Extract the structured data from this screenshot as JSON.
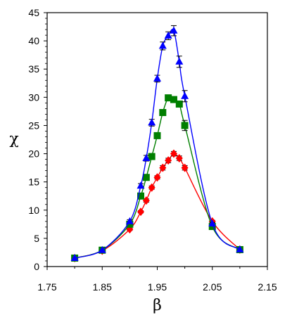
{
  "chart_data": {
    "type": "line",
    "title": "",
    "xlabel": "β",
    "ylabel": "χ",
    "xlim": [
      1.75,
      2.15
    ],
    "ylim": [
      0,
      45
    ],
    "x_ticks": [
      "1.75",
      "1.85",
      "1.95",
      "2.05",
      "2.15"
    ],
    "y_ticks": [
      "0",
      "5",
      "10",
      "15",
      "20",
      "25",
      "30",
      "35",
      "40",
      "45"
    ],
    "grid": false,
    "legend": "none",
    "series": [
      {
        "color": "#ff0000",
        "marker": "diamond",
        "points": [
          {
            "x": 1.8,
            "y": 1.5,
            "err": 0.0
          },
          {
            "x": 1.85,
            "y": 2.8,
            "err": 0.0
          },
          {
            "x": 1.9,
            "y": 6.6,
            "err": 0.2
          },
          {
            "x": 1.92,
            "y": 9.7,
            "err": 0.2
          },
          {
            "x": 1.93,
            "y": 11.7,
            "err": 0.3
          },
          {
            "x": 1.94,
            "y": 14.0,
            "err": 0.3
          },
          {
            "x": 1.95,
            "y": 15.8,
            "err": 0.3
          },
          {
            "x": 1.96,
            "y": 17.5,
            "err": 0.4
          },
          {
            "x": 1.97,
            "y": 18.8,
            "err": 0.4
          },
          {
            "x": 1.98,
            "y": 20.0,
            "err": 0.4
          },
          {
            "x": 1.99,
            "y": 19.2,
            "err": 0.4
          },
          {
            "x": 2.0,
            "y": 17.5,
            "err": 0.4
          },
          {
            "x": 2.05,
            "y": 8.0,
            "err": 0.2
          },
          {
            "x": 2.1,
            "y": 3.0,
            "err": 0.0
          }
        ]
      },
      {
        "color": "#007f00",
        "marker": "square",
        "points": [
          {
            "x": 1.8,
            "y": 1.5,
            "err": 0.0
          },
          {
            "x": 1.85,
            "y": 2.9,
            "err": 0.0
          },
          {
            "x": 1.9,
            "y": 7.5,
            "err": 0.2
          },
          {
            "x": 1.92,
            "y": 12.5,
            "err": 0.3
          },
          {
            "x": 1.93,
            "y": 15.8,
            "err": 0.3
          },
          {
            "x": 1.94,
            "y": 19.5,
            "err": 0.4
          },
          {
            "x": 1.95,
            "y": 23.2,
            "err": 0.4
          },
          {
            "x": 1.96,
            "y": 27.3,
            "err": 0.5
          },
          {
            "x": 1.97,
            "y": 29.9,
            "err": 0.5
          },
          {
            "x": 1.98,
            "y": 29.6,
            "err": 0.5
          },
          {
            "x": 1.99,
            "y": 28.8,
            "err": 0.5
          },
          {
            "x": 2.0,
            "y": 25.0,
            "err": 0.9
          },
          {
            "x": 2.05,
            "y": 7.1,
            "err": 0.2
          },
          {
            "x": 2.1,
            "y": 3.0,
            "err": 0.0
          }
        ]
      },
      {
        "color": "#0000ff",
        "marker": "triangle",
        "points": [
          {
            "x": 1.8,
            "y": 1.5,
            "err": 0.0
          },
          {
            "x": 1.85,
            "y": 2.9,
            "err": 0.0
          },
          {
            "x": 1.9,
            "y": 8.0,
            "err": 0.3
          },
          {
            "x": 1.92,
            "y": 14.3,
            "err": 0.4
          },
          {
            "x": 1.93,
            "y": 19.2,
            "err": 0.5
          },
          {
            "x": 1.94,
            "y": 25.5,
            "err": 0.6
          },
          {
            "x": 1.95,
            "y": 33.3,
            "err": 0.6
          },
          {
            "x": 1.96,
            "y": 39.1,
            "err": 0.7
          },
          {
            "x": 1.97,
            "y": 40.9,
            "err": 0.7
          },
          {
            "x": 1.98,
            "y": 41.8,
            "err": 0.9
          },
          {
            "x": 1.99,
            "y": 36.3,
            "err": 1.0
          },
          {
            "x": 2.0,
            "y": 30.2,
            "err": 1.0
          },
          {
            "x": 2.05,
            "y": 7.6,
            "err": 0.2
          },
          {
            "x": 2.1,
            "y": 3.0,
            "err": 0.0
          }
        ]
      }
    ]
  }
}
